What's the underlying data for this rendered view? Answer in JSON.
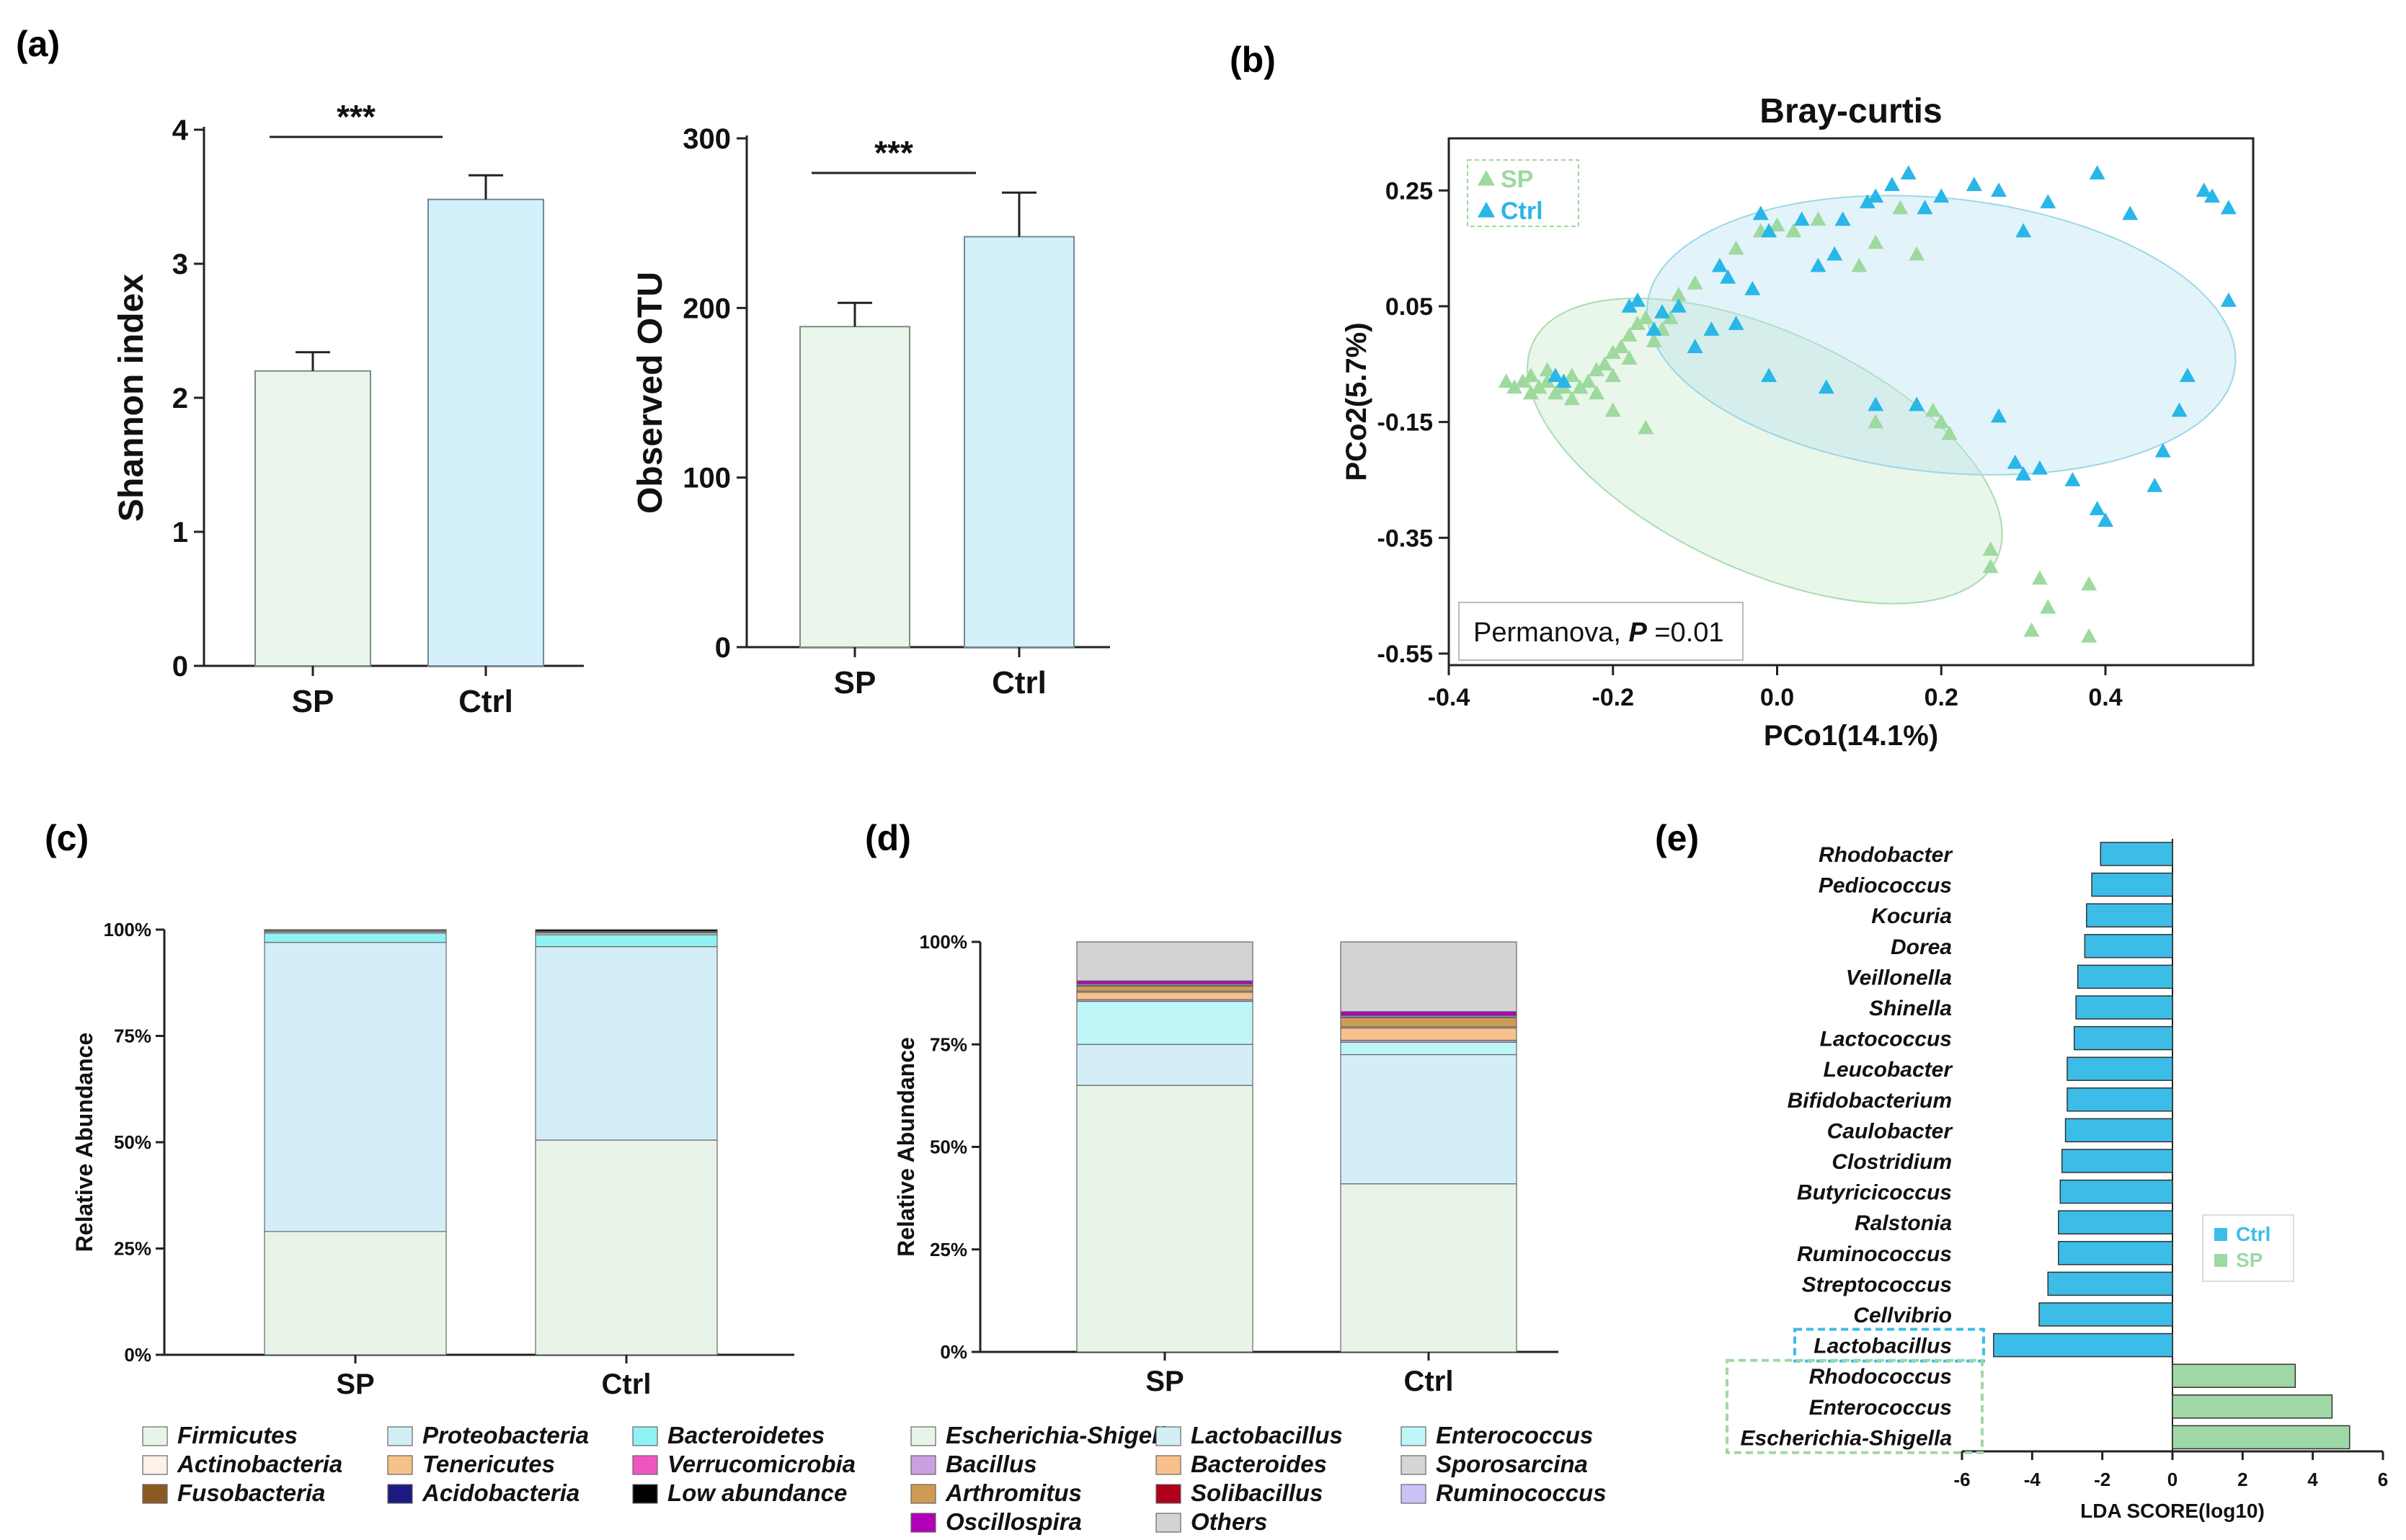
{
  "panel_labels": {
    "a": "(a)",
    "b": "(b)",
    "c": "(c)",
    "d": "(d)",
    "e": "(e)"
  },
  "colors": {
    "sp": "#e9f5ea",
    "ctrl": "#d3f0fb",
    "sp_edge": "#7a8f7a",
    "ctrl_edge": "#6f8a95",
    "sp_point": "#9ed99e",
    "ctrl_point": "#29b6e8",
    "lda_ctrl": "#3cbde8",
    "lda_sp": "#9fd8a6"
  },
  "chart_data": [
    {
      "id": "shannon",
      "type": "bar",
      "ylabel": "Shannon index",
      "categories": [
        "SP",
        "Ctrl"
      ],
      "values": [
        2.2,
        3.48
      ],
      "errors": [
        0.14,
        0.18
      ],
      "ylim": [
        0,
        4
      ],
      "yticks": [
        "0",
        "1",
        "2",
        "3",
        "4"
      ],
      "significance": "***"
    },
    {
      "id": "otu",
      "type": "bar",
      "ylabel": "Observed OTU",
      "categories": [
        "SP",
        "Ctrl"
      ],
      "values": [
        189,
        242
      ],
      "errors": [
        14,
        26
      ],
      "ylim": [
        0,
        300
      ],
      "yticks": [
        "0",
        "100",
        "200",
        "300"
      ],
      "significance": "***"
    },
    {
      "id": "pcoa",
      "type": "scatter",
      "title": "Bray-curtis",
      "xlabel": "PCo1(14.1%)",
      "ylabel": "PCo2(5.7%)",
      "xlim": [
        -0.4,
        0.58
      ],
      "ylim": [
        -0.57,
        0.34
      ],
      "xticks": [
        "-0.4",
        "-0.2",
        "0.0",
        "0.2",
        "0.4"
      ],
      "yticks": [
        "0.25",
        "0.05",
        "-0.15",
        "-0.35",
        "-0.55"
      ],
      "legend": [
        "SP",
        "Ctrl"
      ],
      "annotation_prefix": "Permanova, ",
      "annotation_p": "P",
      "annotation_value": " =0.01",
      "series": [
        {
          "name": "SP",
          "points": [
            [
              -0.33,
              -0.08
            ],
            [
              -0.32,
              -0.09
            ],
            [
              -0.31,
              -0.08
            ],
            [
              -0.3,
              -0.1
            ],
            [
              -0.29,
              -0.09
            ],
            [
              -0.28,
              -0.08
            ],
            [
              -0.27,
              -0.1
            ],
            [
              -0.26,
              -0.09
            ],
            [
              -0.25,
              -0.07
            ],
            [
              -0.25,
              -0.11
            ],
            [
              -0.24,
              -0.09
            ],
            [
              -0.23,
              -0.08
            ],
            [
              -0.22,
              -0.06
            ],
            [
              -0.21,
              -0.05
            ],
            [
              -0.2,
              -0.03
            ],
            [
              -0.19,
              -0.02
            ],
            [
              -0.18,
              0.0
            ],
            [
              -0.17,
              0.02
            ],
            [
              -0.16,
              0.03
            ],
            [
              -0.2,
              -0.07
            ],
            [
              -0.18,
              -0.04
            ],
            [
              -0.15,
              -0.01
            ],
            [
              -0.14,
              0.01
            ],
            [
              -0.13,
              0.03
            ],
            [
              -0.12,
              0.07
            ],
            [
              -0.1,
              0.09
            ],
            [
              -0.05,
              0.15
            ],
            [
              -0.02,
              0.18
            ],
            [
              0.0,
              0.19
            ],
            [
              0.02,
              0.18
            ],
            [
              0.05,
              0.2
            ],
            [
              0.08,
              0.2
            ],
            [
              0.12,
              0.16
            ],
            [
              0.15,
              0.22
            ],
            [
              0.1,
              0.12
            ],
            [
              0.17,
              0.14
            ],
            [
              -0.2,
              -0.13
            ],
            [
              -0.16,
              -0.16
            ],
            [
              0.12,
              -0.15
            ],
            [
              0.19,
              -0.13
            ],
            [
              0.2,
              -0.15
            ],
            [
              0.21,
              -0.17
            ],
            [
              0.26,
              -0.37
            ],
            [
              0.26,
              -0.4
            ],
            [
              0.32,
              -0.42
            ],
            [
              0.31,
              -0.51
            ],
            [
              0.38,
              -0.43
            ],
            [
              0.38,
              -0.52
            ],
            [
              0.33,
              -0.47
            ],
            [
              -0.3,
              -0.07
            ],
            [
              -0.28,
              -0.06
            ],
            [
              -0.22,
              -0.1
            ]
          ]
        },
        {
          "name": "Ctrl",
          "points": [
            [
              -0.27,
              -0.07
            ],
            [
              -0.26,
              -0.08
            ],
            [
              -0.18,
              0.05
            ],
            [
              -0.17,
              0.06
            ],
            [
              -0.14,
              0.04
            ],
            [
              -0.12,
              0.05
            ],
            [
              -0.08,
              0.01
            ],
            [
              -0.06,
              0.1
            ],
            [
              -0.07,
              0.12
            ],
            [
              -0.05,
              0.02
            ],
            [
              -0.03,
              0.08
            ],
            [
              -0.02,
              0.21
            ],
            [
              -0.01,
              0.18
            ],
            [
              0.03,
              0.2
            ],
            [
              0.05,
              0.12
            ],
            [
              0.07,
              0.14
            ],
            [
              0.08,
              0.2
            ],
            [
              0.11,
              0.23
            ],
            [
              0.12,
              0.24
            ],
            [
              0.14,
              0.26
            ],
            [
              0.16,
              0.28
            ],
            [
              0.18,
              0.22
            ],
            [
              0.2,
              0.24
            ],
            [
              0.24,
              0.26
            ],
            [
              0.27,
              0.25
            ],
            [
              0.3,
              0.18
            ],
            [
              0.33,
              0.23
            ],
            [
              0.39,
              0.28
            ],
            [
              0.43,
              0.21
            ],
            [
              0.52,
              0.25
            ],
            [
              0.53,
              0.24
            ],
            [
              0.55,
              0.22
            ],
            [
              0.55,
              0.06
            ],
            [
              0.5,
              -0.07
            ],
            [
              0.49,
              -0.13
            ],
            [
              0.47,
              -0.2
            ],
            [
              0.46,
              -0.26
            ],
            [
              0.4,
              -0.32
            ],
            [
              0.39,
              -0.3
            ],
            [
              0.36,
              -0.25
            ],
            [
              0.3,
              -0.24
            ],
            [
              0.29,
              -0.22
            ],
            [
              0.27,
              -0.14
            ],
            [
              0.17,
              -0.12
            ],
            [
              0.12,
              -0.12
            ],
            [
              0.06,
              -0.09
            ],
            [
              -0.01,
              -0.07
            ],
            [
              0.32,
              -0.23
            ],
            [
              -0.15,
              0.01
            ],
            [
              -0.1,
              -0.02
            ]
          ]
        }
      ]
    },
    {
      "id": "phylum",
      "type": "bar",
      "stacked": true,
      "ylabel": "Relative Abundance",
      "categories": [
        "SP",
        "Ctrl"
      ],
      "yticks": [
        "0%",
        "25%",
        "50%",
        "75%",
        "100%"
      ],
      "series": [
        {
          "name": "Firmicutes",
          "color": "#e8f4e8",
          "values": [
            29,
            50.5
          ]
        },
        {
          "name": "Proteobacteria",
          "color": "#d4eef8",
          "values": [
            68,
            45.5
          ]
        },
        {
          "name": "Bacteroidetes",
          "color": "#8ff3f6",
          "values": [
            2.2,
            2.8
          ]
        },
        {
          "name": "Actinobacteria",
          "color": "#fdf1e9",
          "values": [
            0.3,
            0.4
          ]
        },
        {
          "name": "Tenericutes",
          "color": "#f8c08a",
          "values": [
            0.15,
            0.2
          ]
        },
        {
          "name": "Verrucomicrobia",
          "color": "#ef55c0",
          "values": [
            0.05,
            0.05
          ]
        },
        {
          "name": "Fusobacteria",
          "color": "#8a5a20",
          "values": [
            0.05,
            0.05
          ]
        },
        {
          "name": "Acidobacteria",
          "color": "#1a1a80",
          "values": [
            0.05,
            0.05
          ]
        },
        {
          "name": "Low abundance",
          "color": "#000000",
          "values": [
            0.2,
            0.45
          ]
        }
      ]
    },
    {
      "id": "genus",
      "type": "bar",
      "stacked": true,
      "ylabel": "Relative Abundance",
      "categories": [
        "SP",
        "Ctrl"
      ],
      "yticks": [
        "0%",
        "25%",
        "50%",
        "75%",
        "100%"
      ],
      "series": [
        {
          "name": "Escherichia-Shigella",
          "color": "#e8f4e8",
          "values": [
            65,
            41
          ]
        },
        {
          "name": "Lactobacillus",
          "color": "#d4eef8",
          "values": [
            10,
            31.5
          ]
        },
        {
          "name": "Enterococcus",
          "color": "#bff6f8",
          "values": [
            10.5,
            3
          ]
        },
        {
          "name": "Bacillus",
          "color": "#c9a0e0",
          "values": [
            0.4,
            0.5
          ]
        },
        {
          "name": "Bacteroides",
          "color": "#f8c08a",
          "values": [
            1.8,
            3
          ]
        },
        {
          "name": "Sporosarcina",
          "color": "#d6d6d6",
          "values": [
            0.3,
            0.3
          ]
        },
        {
          "name": "Arthromitus",
          "color": "#cf9a54",
          "values": [
            1.2,
            2.2
          ]
        },
        {
          "name": "Solibacillus",
          "color": "#b0001a",
          "values": [
            0.2,
            0.2
          ]
        },
        {
          "name": "Ruminococcus",
          "color": "#c9c3f6",
          "values": [
            0.3,
            0.3
          ]
        },
        {
          "name": "Oscillospira",
          "color": "#b000b8",
          "values": [
            0.8,
            1
          ]
        },
        {
          "name": "Others",
          "color": "#d3d3d3",
          "values": [
            9.5,
            17
          ]
        }
      ]
    },
    {
      "id": "lda",
      "type": "bar",
      "orientation": "horizontal",
      "xlabel": "LDA SCORE(log10)",
      "xlim": [
        -6,
        6
      ],
      "xticks": [
        "-6",
        "-4",
        "-2",
        "0",
        "2",
        "4",
        "6"
      ],
      "legend": [
        "Ctrl",
        "SP"
      ],
      "categories": [
        "Rhodobacter",
        "Pediococcus",
        "Kocuria",
        "Dorea",
        "Veillonella",
        "Shinella",
        "Lactococcus",
        "Leucobacter",
        "Bifidobacterium",
        "Caulobacter",
        "Clostridium",
        "Butyricicoccus",
        "Ralstonia",
        "Ruminococcus",
        "Streptococcus",
        "Cellvibrio",
        "Lactobacillus",
        "Rhodococcus",
        "Enterococcus",
        "Escherichia-Shigella"
      ],
      "values": [
        -2.05,
        -2.3,
        -2.45,
        -2.5,
        -2.7,
        -2.75,
        -2.8,
        -3.0,
        -3.0,
        -3.05,
        -3.15,
        -3.2,
        -3.25,
        -3.25,
        -3.55,
        -3.8,
        -5.1,
        3.5,
        4.55,
        5.05
      ],
      "highlighted": [
        "Lactobacillus",
        "Rhodococcus",
        "Enterococcus",
        "Escherichia-Shigella"
      ]
    }
  ]
}
